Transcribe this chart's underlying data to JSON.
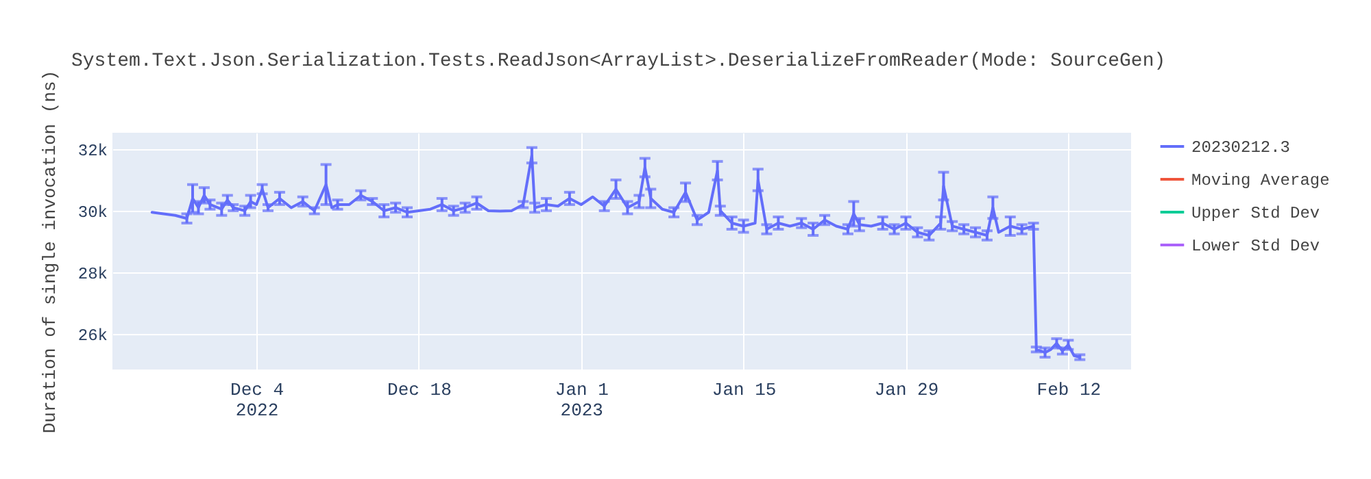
{
  "chart_data": {
    "type": "line",
    "title": "System.Text.Json.Serialization.Tests.ReadJson<ArrayList>.DeserializeFromReader(Mode: SourceGen)",
    "ylabel": "Duration of single invocation (ns)",
    "xlim": [
      "2022-11-21T14:00",
      "2023-02-17T10:00"
    ],
    "xticks": [
      {
        "value": "2022-12-04",
        "label": "Dec 4\n2022"
      },
      {
        "value": "2022-12-18",
        "label": "Dec 18"
      },
      {
        "value": "2023-01-01",
        "label": "Jan 1\n2023"
      },
      {
        "value": "2023-01-15",
        "label": "Jan 15"
      },
      {
        "value": "2023-01-29",
        "label": "Jan 29"
      },
      {
        "value": "2023-02-12",
        "label": "Feb 12"
      }
    ],
    "ylim": [
      24850,
      32530
    ],
    "yticks": [
      {
        "value": 26000,
        "label": "26k"
      },
      {
        "value": 28000,
        "label": "28k"
      },
      {
        "value": 30000,
        "label": "30k"
      },
      {
        "value": 32000,
        "label": "32k"
      }
    ],
    "grid": true,
    "legend": "top right",
    "line_style": "solid",
    "series": [
      {
        "name": "20230212.3",
        "color": "#636efa",
        "x": [
          "2022-11-25",
          "2022-11-26",
          "2022-11-27",
          "2022-11-28",
          "2022-11-28T12:00",
          "2022-11-29",
          "2022-11-29T12:00",
          "2022-11-30",
          "2022-12-01",
          "2022-12-01T12:00",
          "2022-12-02",
          "2022-12-03",
          "2022-12-03T12:00",
          "2022-12-04",
          "2022-12-04T12:00",
          "2022-12-05",
          "2022-12-06",
          "2022-12-07",
          "2022-12-08",
          "2022-12-09",
          "2022-12-10",
          "2022-12-10T12:00",
          "2022-12-11",
          "2022-12-12",
          "2022-12-13",
          "2022-12-14",
          "2022-12-15",
          "2022-12-16",
          "2022-12-17",
          "2022-12-18",
          "2022-12-19",
          "2022-12-20",
          "2022-12-21",
          "2022-12-22",
          "2022-12-23",
          "2022-12-24",
          "2022-12-25",
          "2022-12-26",
          "2022-12-27",
          "2022-12-27T18:00",
          "2022-12-28",
          "2022-12-29",
          "2022-12-30",
          "2022-12-31",
          "2023-01-01",
          "2023-01-02",
          "2023-01-03",
          "2023-01-04",
          "2023-01-05",
          "2023-01-06",
          "2023-01-06T12:00",
          "2023-01-07",
          "2023-01-08",
          "2023-01-09",
          "2023-01-10",
          "2023-01-11",
          "2023-01-12",
          "2023-01-12T18:00",
          "2023-01-13",
          "2023-01-14",
          "2023-01-15",
          "2023-01-16",
          "2023-01-16T06:00",
          "2023-01-17",
          "2023-01-18",
          "2023-01-19",
          "2023-01-20",
          "2023-01-21",
          "2023-01-22",
          "2023-01-23",
          "2023-01-24",
          "2023-01-24T12:00",
          "2023-01-25",
          "2023-01-26",
          "2023-01-27",
          "2023-01-28",
          "2023-01-29",
          "2023-01-30",
          "2023-01-31",
          "2023-02-01",
          "2023-02-01T06:00",
          "2023-02-02",
          "2023-02-03",
          "2023-02-04",
          "2023-02-05",
          "2023-02-05T12:00",
          "2023-02-06",
          "2023-02-07",
          "2023-02-08",
          "2023-02-09",
          "2023-02-09T06:00",
          "2023-02-10",
          "2023-02-10T12:00",
          "2023-02-11",
          "2023-02-11T12:00",
          "2023-02-12",
          "2023-02-12T12:00",
          "2023-02-13"
        ],
        "values": [
          29950,
          29900,
          29850,
          29750,
          30400,
          30100,
          30500,
          30200,
          30050,
          30350,
          30100,
          30000,
          30300,
          30200,
          30700,
          30100,
          30400,
          30100,
          30300,
          30000,
          30850,
          30100,
          30200,
          30200,
          30500,
          30300,
          30000,
          30100,
          29950,
          30000,
          30050,
          30200,
          30000,
          30100,
          30250,
          30000,
          29990,
          30000,
          30200,
          31800,
          30100,
          30200,
          30150,
          30400,
          30200,
          30450,
          30150,
          30700,
          30100,
          30300,
          31400,
          30400,
          30050,
          29950,
          30600,
          29700,
          29950,
          31300,
          30000,
          29600,
          29500,
          29600,
          31000,
          29400,
          29600,
          29500,
          29600,
          29400,
          29700,
          29500,
          29400,
          29900,
          29550,
          29500,
          29600,
          29400,
          29600,
          29300,
          29200,
          29600,
          30800,
          29500,
          29400,
          29300,
          29200,
          30100,
          29300,
          29500,
          29400,
          29500,
          25500,
          25400,
          25500,
          25700,
          25450,
          25650,
          25300,
          25250
        ],
        "errors": [
          null,
          null,
          null,
          150,
          450,
          200,
          250,
          150,
          200,
          150,
          100,
          150,
          200,
          null,
          150,
          100,
          200,
          null,
          150,
          100,
          650,
          null,
          150,
          null,
          150,
          100,
          200,
          150,
          150,
          null,
          null,
          200,
          150,
          150,
          200,
          null,
          null,
          null,
          100,
          250,
          150,
          200,
          null,
          200,
          null,
          null,
          150,
          300,
          200,
          200,
          300,
          300,
          null,
          150,
          300,
          150,
          null,
          300,
          150,
          200,
          200,
          null,
          350,
          150,
          200,
          null,
          150,
          200,
          150,
          null,
          150,
          400,
          200,
          null,
          200,
          150,
          200,
          150,
          150,
          200,
          450,
          150,
          150,
          150,
          150,
          350,
          null,
          300,
          150,
          100,
          80,
          150,
          null,
          150,
          100,
          150,
          null,
          80
        ]
      },
      {
        "name": "Moving Average",
        "color": "#ef553b"
      },
      {
        "name": "Upper Std Dev",
        "color": "#00cc96"
      },
      {
        "name": "Lower Std Dev",
        "color": "#ab63fa"
      }
    ]
  }
}
